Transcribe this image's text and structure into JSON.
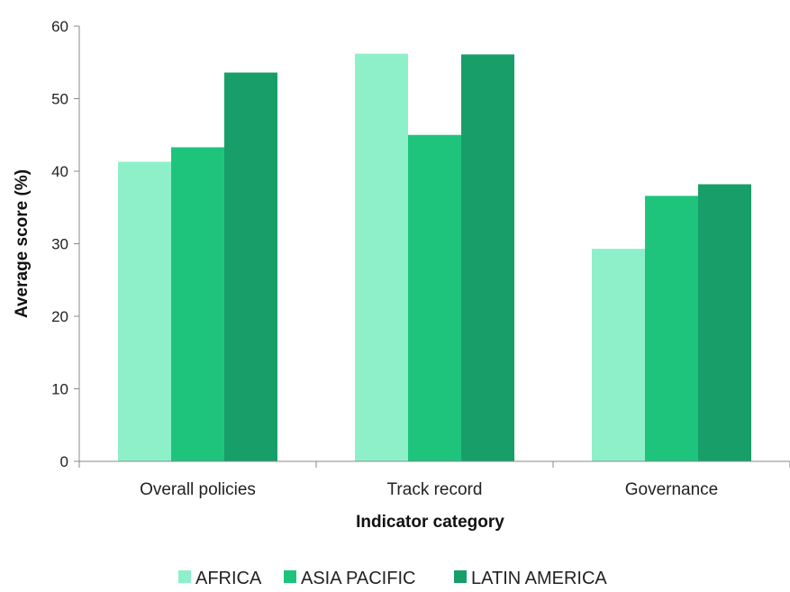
{
  "chart_data": {
    "type": "bar",
    "title": "",
    "xlabel": "Indicator category",
    "ylabel": "Average score (%)",
    "ylim": [
      0,
      60
    ],
    "yticks": [
      0,
      10,
      20,
      30,
      40,
      50,
      60
    ],
    "grid": false,
    "legend_position": "bottom",
    "categories": [
      "Overall policies",
      "Track record",
      "Governance"
    ],
    "series": [
      {
        "name": "AFRICA",
        "color": "#8EF0C9",
        "values": [
          41.3,
          56.2,
          29.3
        ]
      },
      {
        "name": "ASIA PACIFIC",
        "color": "#1FC47C",
        "values": [
          43.3,
          45.0,
          36.6
        ]
      },
      {
        "name": "LATIN AMERICA",
        "color": "#189E69",
        "values": [
          53.6,
          56.1,
          38.2
        ]
      }
    ]
  }
}
